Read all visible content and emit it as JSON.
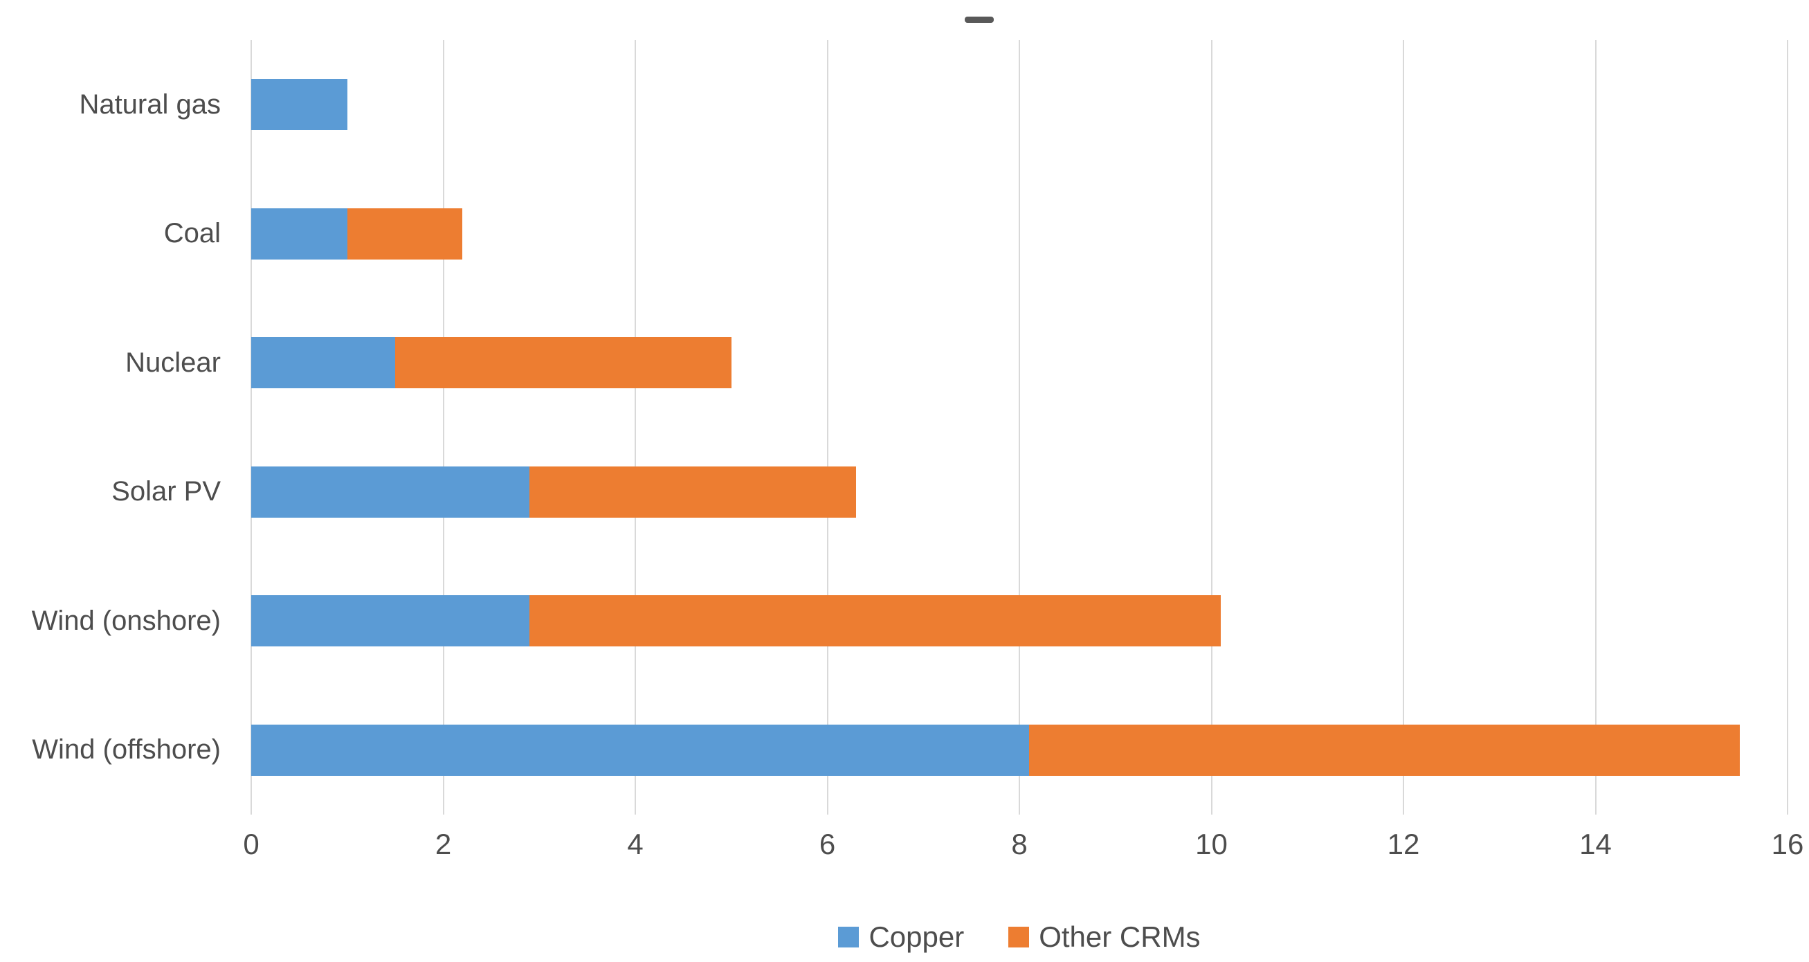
{
  "chart_data": {
    "type": "bar",
    "orientation": "horizontal",
    "stacked": true,
    "title": "",
    "title_dash": "-",
    "xlabel": "",
    "ylabel": "",
    "xlim": [
      0,
      16
    ],
    "x_ticks": [
      "0",
      "2",
      "4",
      "6",
      "8",
      "10",
      "12",
      "14",
      "16"
    ],
    "grid": "vertical-on",
    "legend_position": "bottom-center",
    "categories": [
      "Natural gas",
      "Coal",
      "Nuclear",
      "Solar PV",
      "Wind (onshore)",
      "Wind (offshore)"
    ],
    "series": [
      {
        "name": "Copper",
        "color": "#5B9BD5",
        "values": [
          1.0,
          1.0,
          1.5,
          2.9,
          2.9,
          8.1
        ]
      },
      {
        "name": "Other CRMs",
        "color": "#ED7D31",
        "values": [
          0,
          1.2,
          3.5,
          3.4,
          7.2,
          7.4
        ]
      }
    ],
    "totals": [
      1.0,
      2.2,
      5.0,
      6.3,
      10.1,
      15.5
    ]
  },
  "colors": {
    "copper": "#5B9BD5",
    "other_crms": "#ED7D31",
    "gridline": "#d9d9d9",
    "text": "#4d4d4d",
    "background": "#ffffff"
  },
  "legend": {
    "items": [
      {
        "label": "Copper",
        "color": "#5B9BD5"
      },
      {
        "label": "Other CRMs",
        "color": "#ED7D31"
      }
    ]
  }
}
